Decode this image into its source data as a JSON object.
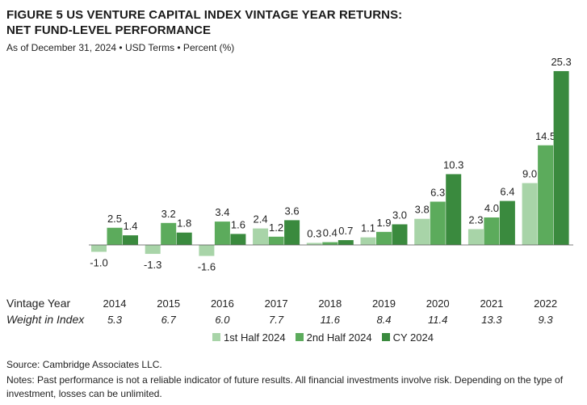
{
  "header": {
    "title_line1": "FIGURE 5  US VENTURE CAPITAL INDEX VINTAGE YEAR RETURNS:",
    "title_line2": "NET FUND-LEVEL PERFORMANCE",
    "subtitle": "As of December 31, 2024 • USD Terms • Percent (%)"
  },
  "rows": {
    "vintage_label": "Vintage Year",
    "weight_label": "Weight in Index"
  },
  "footer": {
    "source": "Source: Cambridge Associates LLC.",
    "notes": "Notes: Past performance is not a reliable indicator of future results. All financial investments involve risk. Depending on the type of investment, losses can be unlimited."
  },
  "chart_data": {
    "type": "bar",
    "categories": [
      "2014",
      "2015",
      "2016",
      "2017",
      "2018",
      "2019",
      "2020",
      "2021",
      "2022"
    ],
    "weights": [
      "5.3",
      "6.7",
      "6.0",
      "7.7",
      "11.6",
      "8.4",
      "11.4",
      "13.3",
      "9.3"
    ],
    "series": [
      {
        "name": "1st Half 2024",
        "color": "#a8d4a8",
        "values": [
          -1.0,
          -1.3,
          -1.6,
          2.4,
          0.3,
          1.1,
          3.8,
          2.3,
          9.0
        ]
      },
      {
        "name": "2nd Half 2024",
        "color": "#5cab5c",
        "values": [
          2.5,
          3.2,
          3.4,
          1.2,
          0.4,
          1.9,
          6.3,
          4.0,
          14.5
        ]
      },
      {
        "name": "CY 2024",
        "color": "#3a8a3e",
        "values": [
          1.4,
          1.8,
          1.6,
          3.6,
          0.7,
          3.0,
          10.3,
          6.4,
          25.3
        ]
      }
    ],
    "legend_position": "bottom",
    "grid": false
  }
}
